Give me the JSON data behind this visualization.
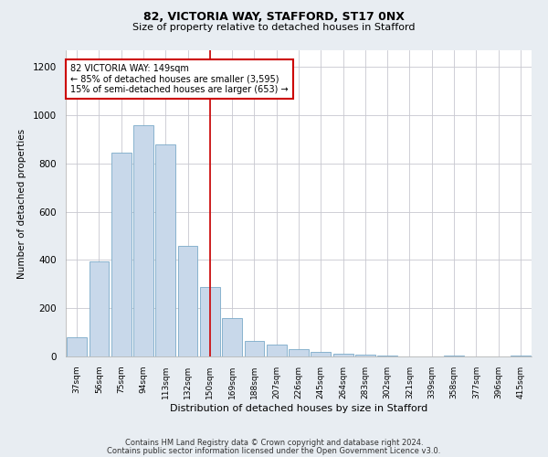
{
  "title1": "82, VICTORIA WAY, STAFFORD, ST17 0NX",
  "title2": "Size of property relative to detached houses in Stafford",
  "xlabel": "Distribution of detached houses by size in Stafford",
  "ylabel": "Number of detached properties",
  "categories": [
    "37sqm",
    "56sqm",
    "75sqm",
    "94sqm",
    "113sqm",
    "132sqm",
    "150sqm",
    "169sqm",
    "188sqm",
    "207sqm",
    "226sqm",
    "245sqm",
    "264sqm",
    "283sqm",
    "302sqm",
    "321sqm",
    "339sqm",
    "358sqm",
    "377sqm",
    "396sqm",
    "415sqm"
  ],
  "values": [
    80,
    395,
    845,
    960,
    880,
    460,
    290,
    160,
    65,
    48,
    30,
    20,
    10,
    8,
    5,
    0,
    0,
    5,
    0,
    0,
    5
  ],
  "bar_color": "#c8d8ea",
  "bar_edge_color": "#7aaac8",
  "vline_x_index": 6,
  "vline_color": "#cc0000",
  "annotation_text": "82 VICTORIA WAY: 149sqm\n← 85% of detached houses are smaller (3,595)\n15% of semi-detached houses are larger (653) →",
  "annotation_box_color": "#ffffff",
  "annotation_box_edge_color": "#cc0000",
  "ylim": [
    0,
    1270
  ],
  "yticks": [
    0,
    200,
    400,
    600,
    800,
    1000,
    1200
  ],
  "footer1": "Contains HM Land Registry data © Crown copyright and database right 2024.",
  "footer2": "Contains public sector information licensed under the Open Government Licence v3.0.",
  "bg_color": "#e8edf2",
  "plot_bg_color": "#ffffff",
  "grid_color": "#c8c8d0"
}
